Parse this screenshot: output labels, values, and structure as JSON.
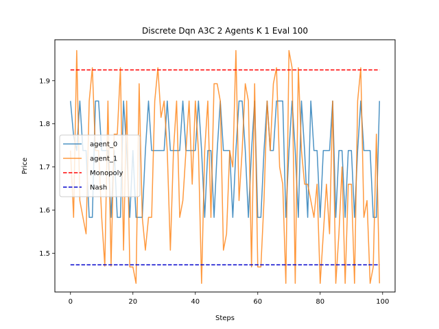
{
  "chart_data": {
    "type": "line",
    "title": "Discrete Dqn A3C 2 Agents K 1 Eval 100",
    "xlabel": "Steps",
    "ylabel": "Price",
    "xlim": [
      -5,
      104
    ],
    "ylim": [
      1.41,
      1.995
    ],
    "xticks": [
      0,
      20,
      40,
      60,
      80,
      100
    ],
    "xtick_labels": [
      "0",
      "20",
      "40",
      "60",
      "80",
      "100"
    ],
    "yticks": [
      1.5,
      1.6,
      1.7,
      1.8,
      1.9
    ],
    "ytick_labels": [
      "1.5",
      "1.6",
      "1.7",
      "1.8",
      "1.9"
    ],
    "grid": false,
    "legend_position": "center-left",
    "series": [
      {
        "name": "agent_0",
        "color": "#1f77b4",
        "style": "solid",
        "x": [
          0,
          1,
          2,
          3,
          4,
          5,
          6,
          7,
          8,
          9,
          10,
          11,
          12,
          13,
          14,
          15,
          16,
          17,
          18,
          19,
          20,
          21,
          22,
          23,
          24,
          25,
          26,
          27,
          28,
          29,
          30,
          31,
          32,
          33,
          34,
          35,
          36,
          37,
          38,
          39,
          40,
          41,
          42,
          43,
          44,
          45,
          46,
          47,
          48,
          49,
          50,
          51,
          52,
          53,
          54,
          55,
          56,
          57,
          58,
          59,
          60,
          61,
          62,
          63,
          64,
          65,
          66,
          67,
          68,
          69,
          70,
          71,
          72,
          73,
          74,
          75,
          76,
          77,
          78,
          79,
          80,
          81,
          82,
          83,
          84,
          85,
          86,
          87,
          88,
          89,
          90,
          91,
          92,
          93,
          94,
          95,
          96,
          97,
          98,
          99
        ],
        "values": [
          1.853,
          1.772,
          1.738,
          1.853,
          1.738,
          1.738,
          1.583,
          1.583,
          1.853,
          1.853,
          1.738,
          1.738,
          1.738,
          1.583,
          1.738,
          1.583,
          1.583,
          1.853,
          1.738,
          1.583,
          1.738,
          1.583,
          1.583,
          1.583,
          1.738,
          1.853,
          1.738,
          1.738,
          1.738,
          1.738,
          1.738,
          1.853,
          1.738,
          1.738,
          1.738,
          1.738,
          1.853,
          1.738,
          1.738,
          1.738,
          1.738,
          1.853,
          1.738,
          1.583,
          1.738,
          1.738,
          1.583,
          1.738,
          1.853,
          1.738,
          1.738,
          1.738,
          1.583,
          1.738,
          1.853,
          1.853,
          1.738,
          1.583,
          1.738,
          1.853,
          1.583,
          1.583,
          1.738,
          1.853,
          1.738,
          1.738,
          1.853,
          1.853,
          1.853,
          1.583,
          1.738,
          1.853,
          1.738,
          1.583,
          1.853,
          1.738,
          1.583,
          1.853,
          1.738,
          1.738,
          1.583,
          1.738,
          1.738,
          1.738,
          1.853,
          1.583,
          1.738,
          1.738,
          1.583,
          1.738,
          1.738,
          1.583,
          1.738,
          1.853,
          1.738,
          1.738,
          1.738,
          1.583,
          1.583,
          1.853
        ]
      },
      {
        "name": "agent_1",
        "color": "#ff7f0e",
        "style": "solid",
        "x": [
          0,
          1,
          2,
          3,
          4,
          5,
          6,
          7,
          8,
          9,
          10,
          11,
          12,
          13,
          14,
          15,
          16,
          17,
          18,
          19,
          20,
          21,
          22,
          23,
          24,
          25,
          26,
          27,
          28,
          29,
          30,
          31,
          32,
          33,
          34,
          35,
          36,
          37,
          38,
          39,
          40,
          41,
          42,
          43,
          44,
          45,
          46,
          47,
          48,
          49,
          50,
          51,
          52,
          53,
          54,
          55,
          56,
          57,
          58,
          59,
          60,
          61,
          62,
          63,
          64,
          65,
          66,
          67,
          68,
          69,
          70,
          71,
          72,
          73,
          74,
          75,
          76,
          77,
          78,
          79,
          80,
          81,
          82,
          83,
          84,
          85,
          86,
          87,
          88,
          89,
          90,
          91,
          92,
          93,
          94,
          95,
          96,
          97,
          98,
          99
        ],
        "values": [
          1.738,
          1.583,
          1.97,
          1.622,
          1.583,
          1.545,
          1.853,
          1.93,
          1.738,
          1.738,
          1.583,
          1.47,
          1.853,
          1.47,
          1.776,
          1.776,
          1.93,
          1.507,
          1.853,
          1.468,
          1.468,
          1.43,
          1.893,
          1.583,
          1.507,
          1.583,
          1.583,
          1.853,
          1.93,
          1.815,
          1.853,
          1.738,
          1.507,
          1.738,
          1.853,
          1.583,
          1.622,
          1.738,
          1.853,
          1.66,
          1.853,
          1.738,
          1.43,
          1.738,
          1.853,
          1.583,
          1.893,
          1.893,
          1.853,
          1.507,
          1.545,
          1.738,
          1.7,
          1.97,
          1.622,
          1.738,
          1.893,
          1.853,
          1.468,
          1.893,
          1.468,
          1.468,
          1.622,
          1.853,
          1.738,
          1.893,
          1.93,
          1.7,
          1.66,
          1.43,
          1.97,
          1.93,
          1.43,
          1.93,
          1.738,
          1.66,
          1.66,
          1.622,
          1.583,
          1.66,
          1.43,
          1.545,
          1.66,
          1.545,
          1.853,
          1.43,
          1.545,
          1.7,
          1.43,
          1.66,
          1.66,
          1.43,
          1.853,
          1.93,
          1.583,
          1.622,
          1.43,
          1.468,
          1.776,
          1.43
        ]
      },
      {
        "name": "Monopoly",
        "color": "#ff0000",
        "style": "dashed",
        "x": [
          0,
          99
        ],
        "values": [
          1.925,
          1.925
        ]
      },
      {
        "name": "Nash",
        "color": "#0000cc",
        "style": "dashed",
        "x": [
          0,
          99
        ],
        "values": [
          1.473,
          1.473
        ]
      }
    ]
  }
}
